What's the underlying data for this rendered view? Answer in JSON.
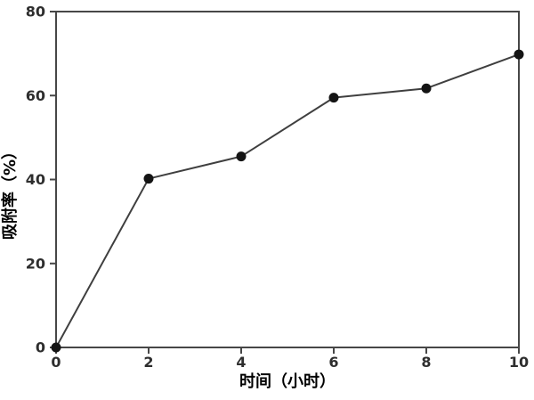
{
  "figure": {
    "background": "#ffffff"
  },
  "chart_data": {
    "type": "line",
    "title": "",
    "xlabel": "时间（小时）",
    "ylabel": "吸附率（%）",
    "x": [
      0,
      2,
      4,
      6,
      8,
      10
    ],
    "series": [
      {
        "name": "吸附率",
        "values": [
          0,
          40.2,
          45.5,
          59.5,
          61.7,
          69.8
        ]
      }
    ],
    "xlim": [
      0,
      10
    ],
    "ylim": [
      0,
      80
    ],
    "xticks": [
      0,
      2,
      4,
      6,
      8,
      10
    ],
    "yticks": [
      0,
      20,
      40,
      60,
      80
    ],
    "grid": false,
    "legend_position": "none",
    "frame": "full-box",
    "marker": "filled-circle",
    "colors": {
      "line": "#3f3f3f",
      "marker": "#141414",
      "axis": "#474747",
      "tick_label": "#2e2e2e",
      "axis_title": "#1c1c1c"
    }
  }
}
